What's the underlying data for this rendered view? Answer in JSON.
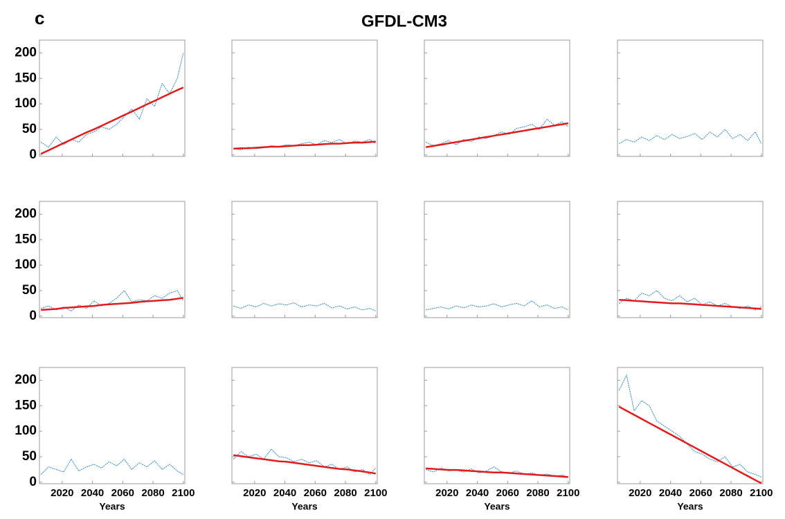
{
  "title": "GFDL-CM3",
  "label": "c",
  "chart_data": [
    {
      "type": "line",
      "x": [
        2006,
        2011,
        2016,
        2021,
        2026,
        2031,
        2036,
        2041,
        2046,
        2051,
        2056,
        2061,
        2066,
        2071,
        2076,
        2081,
        2086,
        2091,
        2096,
        2100
      ],
      "xlim": [
        2005,
        2101
      ],
      "xticks": [
        2020,
        2040,
        2060,
        2080,
        2100
      ],
      "ylim": [
        -3,
        225
      ],
      "yticks": [
        0,
        50,
        100,
        150,
        200
      ],
      "series": [
        {
          "color": "#2e86c1",
          "values": [
            25,
            15,
            35,
            20,
            30,
            25,
            40,
            45,
            55,
            50,
            60,
            75,
            90,
            70,
            110,
            95,
            140,
            120,
            150,
            200
          ]
        },
        {
          "color": "#e31a1c",
          "values": [
            2,
            9,
            16,
            23,
            30,
            37,
            44,
            50,
            57,
            64,
            71,
            78,
            85,
            92,
            99,
            106,
            113,
            120,
            127,
            132
          ]
        }
      ]
    },
    {
      "type": "line",
      "x": [
        2006,
        2011,
        2016,
        2021,
        2026,
        2031,
        2036,
        2041,
        2046,
        2051,
        2056,
        2061,
        2066,
        2071,
        2076,
        2081,
        2086,
        2091,
        2096,
        2100
      ],
      "xlim": [
        2005,
        2101
      ],
      "xticks": [
        2020,
        2040,
        2060,
        2080,
        2100
      ],
      "ylim": [
        -3,
        225
      ],
      "yticks": [
        0,
        50,
        100,
        150,
        200
      ],
      "series": [
        {
          "color": "#2e86c1",
          "values": [
            12,
            10,
            15,
            12,
            14,
            18,
            16,
            20,
            18,
            22,
            25,
            20,
            28,
            24,
            30,
            22,
            27,
            25,
            30,
            22
          ]
        },
        {
          "color": "#e31a1c",
          "values": [
            12,
            13,
            13,
            14,
            15,
            16,
            16,
            17,
            18,
            19,
            19,
            20,
            21,
            22,
            22,
            23,
            24,
            24,
            25,
            26
          ]
        }
      ]
    },
    {
      "type": "line",
      "x": [
        2006,
        2011,
        2016,
        2021,
        2026,
        2031,
        2036,
        2041,
        2046,
        2051,
        2056,
        2061,
        2066,
        2071,
        2076,
        2081,
        2086,
        2091,
        2096,
        2100
      ],
      "xlim": [
        2005,
        2101
      ],
      "xticks": [
        2020,
        2040,
        2060,
        2080,
        2100
      ],
      "ylim": [
        -3,
        225
      ],
      "yticks": [
        0,
        50,
        100,
        150,
        200
      ],
      "series": [
        {
          "color": "#2e86c1",
          "values": [
            25,
            18,
            22,
            28,
            20,
            30,
            26,
            35,
            32,
            38,
            45,
            40,
            52,
            55,
            60,
            50,
            70,
            58,
            65,
            55
          ]
        },
        {
          "color": "#e31a1c",
          "values": [
            15,
            17.5,
            20,
            22.5,
            25,
            27.5,
            30,
            32.5,
            35,
            37.5,
            40,
            42.5,
            45,
            47.5,
            50,
            52.5,
            55,
            57.5,
            60,
            62
          ]
        }
      ]
    },
    {
      "type": "line",
      "x": [
        2006,
        2011,
        2016,
        2021,
        2026,
        2031,
        2036,
        2041,
        2046,
        2051,
        2056,
        2061,
        2066,
        2071,
        2076,
        2081,
        2086,
        2091,
        2096,
        2100
      ],
      "xlim": [
        2005,
        2101
      ],
      "xticks": [
        2020,
        2040,
        2060,
        2080,
        2100
      ],
      "ylim": [
        -3,
        225
      ],
      "yticks": [
        0,
        50,
        100,
        150,
        200
      ],
      "series": [
        {
          "color": "#2e86c1",
          "values": [
            22,
            30,
            25,
            35,
            28,
            38,
            30,
            40,
            32,
            36,
            42,
            30,
            45,
            35,
            50,
            32,
            40,
            28,
            45,
            22
          ]
        }
      ]
    },
    {
      "type": "line",
      "x": [
        2006,
        2011,
        2016,
        2021,
        2026,
        2031,
        2036,
        2041,
        2046,
        2051,
        2056,
        2061,
        2066,
        2071,
        2076,
        2081,
        2086,
        2091,
        2096,
        2100
      ],
      "xlim": [
        2005,
        2101
      ],
      "xticks": [
        2020,
        2040,
        2060,
        2080,
        2100
      ],
      "ylim": [
        -3,
        225
      ],
      "yticks": [
        0,
        50,
        100,
        150,
        200
      ],
      "series": [
        {
          "color": "#2e86c1",
          "values": [
            15,
            20,
            12,
            18,
            10,
            22,
            15,
            30,
            20,
            25,
            35,
            50,
            28,
            32,
            30,
            40,
            35,
            45,
            50,
            30
          ]
        },
        {
          "color": "#e31a1c",
          "values": [
            12,
            13,
            14,
            16,
            17,
            18,
            19,
            20,
            22,
            23,
            24,
            25,
            26,
            28,
            29,
            30,
            31,
            32,
            34,
            36
          ]
        }
      ]
    },
    {
      "type": "line",
      "x": [
        2006,
        2011,
        2016,
        2021,
        2026,
        2031,
        2036,
        2041,
        2046,
        2051,
        2056,
        2061,
        2066,
        2071,
        2076,
        2081,
        2086,
        2091,
        2096,
        2100
      ],
      "xlim": [
        2005,
        2101
      ],
      "xticks": [
        2020,
        2040,
        2060,
        2080,
        2100
      ],
      "ylim": [
        -3,
        225
      ],
      "yticks": [
        0,
        50,
        100,
        150,
        200
      ],
      "series": [
        {
          "color": "#2e86c1",
          "values": [
            20,
            15,
            22,
            18,
            25,
            20,
            24,
            22,
            26,
            18,
            22,
            20,
            25,
            16,
            20,
            14,
            18,
            12,
            15,
            10
          ]
        }
      ]
    },
    {
      "type": "line",
      "x": [
        2006,
        2011,
        2016,
        2021,
        2026,
        2031,
        2036,
        2041,
        2046,
        2051,
        2056,
        2061,
        2066,
        2071,
        2076,
        2081,
        2086,
        2091,
        2096,
        2100
      ],
      "xlim": [
        2005,
        2101
      ],
      "xticks": [
        2020,
        2040,
        2060,
        2080,
        2100
      ],
      "ylim": [
        -3,
        225
      ],
      "yticks": [
        0,
        50,
        100,
        150,
        200
      ],
      "series": [
        {
          "color": "#2e86c1",
          "values": [
            12,
            15,
            18,
            14,
            20,
            16,
            22,
            18,
            20,
            24,
            18,
            22,
            25,
            20,
            30,
            18,
            22,
            15,
            18,
            12
          ]
        }
      ]
    },
    {
      "type": "line",
      "x": [
        2006,
        2011,
        2016,
        2021,
        2026,
        2031,
        2036,
        2041,
        2046,
        2051,
        2056,
        2061,
        2066,
        2071,
        2076,
        2081,
        2086,
        2091,
        2096,
        2100
      ],
      "xlim": [
        2005,
        2101
      ],
      "xticks": [
        2020,
        2040,
        2060,
        2080,
        2100
      ],
      "ylim": [
        -3,
        225
      ],
      "yticks": [
        0,
        50,
        100,
        150,
        200
      ],
      "series": [
        {
          "color": "#2e86c1",
          "values": [
            25,
            35,
            30,
            45,
            40,
            50,
            35,
            30,
            40,
            28,
            35,
            22,
            28,
            20,
            25,
            18,
            15,
            20,
            12,
            18
          ]
        },
        {
          "color": "#e31a1c",
          "values": [
            32,
            31,
            30,
            29,
            28,
            27,
            26,
            25,
            25,
            24,
            23,
            22,
            21,
            20,
            19,
            18,
            17,
            16,
            15,
            14
          ]
        }
      ]
    },
    {
      "type": "line",
      "x": [
        2006,
        2011,
        2016,
        2021,
        2026,
        2031,
        2036,
        2041,
        2046,
        2051,
        2056,
        2061,
        2066,
        2071,
        2076,
        2081,
        2086,
        2091,
        2096,
        2100
      ],
      "xlim": [
        2005,
        2101
      ],
      "xticks": [
        2020,
        2040,
        2060,
        2080,
        2100
      ],
      "ylim": [
        -3,
        225
      ],
      "yticks": [
        0,
        50,
        100,
        150,
        200
      ],
      "xlabel": "Years",
      "series": [
        {
          "color": "#2e86c1",
          "values": [
            15,
            30,
            25,
            20,
            45,
            22,
            30,
            35,
            28,
            40,
            32,
            45,
            25,
            38,
            30,
            42,
            25,
            35,
            22,
            15
          ]
        }
      ]
    },
    {
      "type": "line",
      "x": [
        2006,
        2011,
        2016,
        2021,
        2026,
        2031,
        2036,
        2041,
        2046,
        2051,
        2056,
        2061,
        2066,
        2071,
        2076,
        2081,
        2086,
        2091,
        2096,
        2100
      ],
      "xlim": [
        2005,
        2101
      ],
      "xticks": [
        2020,
        2040,
        2060,
        2080,
        2100
      ],
      "ylim": [
        -3,
        225
      ],
      "yticks": [
        0,
        50,
        100,
        150,
        200
      ],
      "xlabel": "Years",
      "series": [
        {
          "color": "#2e86c1",
          "values": [
            45,
            60,
            50,
            55,
            45,
            65,
            50,
            48,
            40,
            45,
            38,
            42,
            30,
            35,
            25,
            30,
            20,
            25,
            15,
            28
          ]
        },
        {
          "color": "#e31a1c",
          "values": [
            53,
            51,
            49,
            47,
            45,
            43,
            41,
            40,
            38,
            36,
            34,
            32,
            30,
            28,
            26,
            25,
            23,
            21,
            19,
            17
          ]
        }
      ]
    },
    {
      "type": "line",
      "x": [
        2006,
        2011,
        2016,
        2021,
        2026,
        2031,
        2036,
        2041,
        2046,
        2051,
        2056,
        2061,
        2066,
        2071,
        2076,
        2081,
        2086,
        2091,
        2096,
        2100
      ],
      "xlim": [
        2005,
        2101
      ],
      "xticks": [
        2020,
        2040,
        2060,
        2080,
        2100
      ],
      "ylim": [
        -3,
        225
      ],
      "yticks": [
        0,
        50,
        100,
        150,
        200
      ],
      "xlabel": "Years",
      "series": [
        {
          "color": "#2e86c1",
          "values": [
            25,
            20,
            28,
            22,
            24,
            20,
            26,
            18,
            22,
            30,
            20,
            18,
            22,
            15,
            18,
            14,
            16,
            12,
            14,
            10
          ]
        },
        {
          "color": "#e31a1c",
          "values": [
            27,
            26,
            25,
            24,
            24,
            23,
            22,
            21,
            20,
            19,
            19,
            18,
            17,
            16,
            15,
            14,
            13,
            12,
            11,
            10
          ]
        }
      ]
    },
    {
      "type": "line",
      "x": [
        2006,
        2011,
        2016,
        2021,
        2026,
        2031,
        2036,
        2041,
        2046,
        2051,
        2056,
        2061,
        2066,
        2071,
        2076,
        2081,
        2086,
        2091,
        2096,
        2100
      ],
      "xlim": [
        2005,
        2101
      ],
      "xticks": [
        2020,
        2040,
        2060,
        2080,
        2100
      ],
      "ylim": [
        -3,
        225
      ],
      "yticks": [
        0,
        50,
        100,
        150,
        200
      ],
      "xlabel": "Years",
      "series": [
        {
          "color": "#2e86c1",
          "values": [
            180,
            210,
            140,
            160,
            150,
            120,
            110,
            100,
            90,
            75,
            60,
            55,
            45,
            40,
            50,
            30,
            35,
            20,
            15,
            10
          ]
        },
        {
          "color": "#e31a1c",
          "values": [
            148,
            140,
            132,
            124,
            116,
            108,
            100,
            92,
            84,
            76,
            68,
            60,
            52,
            44,
            36,
            28,
            20,
            12,
            4,
            -2
          ]
        }
      ]
    }
  ]
}
